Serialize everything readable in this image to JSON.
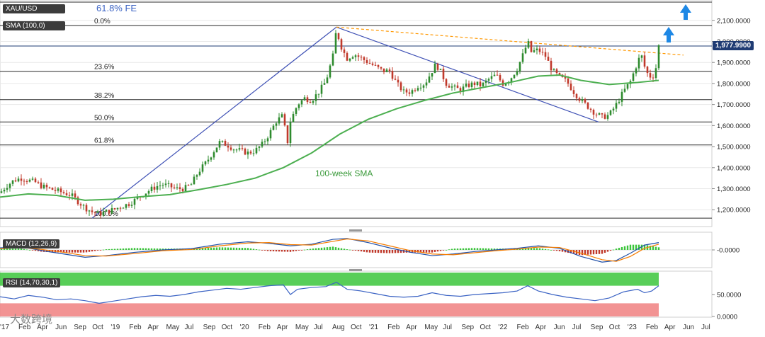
{
  "chart_data": [
    {
      "type": "candlestick",
      "symbol": "XAU/USD",
      "indicator": "SMA (100,0)",
      "sma_label": "100-week SMA",
      "last_price": "1,977.9900",
      "projection_label": "61.8% FE",
      "fib_levels": [
        {
          "label": "0.0%",
          "price": 2075
        },
        {
          "label": "23.6%",
          "price": 1858
        },
        {
          "label": "38.2%",
          "price": 1723
        },
        {
          "label": "50.0%",
          "price": 1617
        },
        {
          "label": "61.8%",
          "price": 1508
        },
        {
          "label": "100.0%",
          "price": 1160
        }
      ],
      "y_ticks": [
        "2,100.0000",
        "2,000.0000",
        "1,900.0000",
        "1,800.0000",
        "1,700.0000",
        "1,600.0000",
        "1,500.0000",
        "1,400.0000",
        "1,300.0000",
        "1,200.0000"
      ],
      "ylim": [
        1120,
        2180
      ],
      "x_ticks": [
        "'17",
        "Feb",
        "Apr",
        "Jun",
        "Sep",
        "Oct",
        "'19",
        "Feb",
        "Apr",
        "May",
        "Jul",
        "Sep",
        "Oct",
        "'20",
        "Feb",
        "Apr",
        "May",
        "Jul",
        "Aug",
        "Oct",
        "'21",
        "Feb",
        "Apr",
        "May",
        "Jul",
        "Sep",
        "Oct",
        "'22",
        "Feb",
        "Apr",
        "Jun",
        "Jul",
        "Sep",
        "Oct",
        "'23",
        "Feb",
        "Apr",
        "Jun",
        "Jul"
      ],
      "price_path": [
        [
          0,
          1280
        ],
        [
          8,
          1310
        ],
        [
          20,
          1340
        ],
        [
          30,
          1350
        ],
        [
          40,
          1340
        ],
        [
          50,
          1330
        ],
        [
          60,
          1310
        ],
        [
          70,
          1300
        ],
        [
          80,
          1290
        ],
        [
          90,
          1280
        ],
        [
          100,
          1270
        ],
        [
          110,
          1240
        ],
        [
          120,
          1210
        ],
        [
          130,
          1190
        ],
        [
          140,
          1180
        ],
        [
          150,
          1190
        ],
        [
          160,
          1200
        ],
        [
          170,
          1215
        ],
        [
          180,
          1225
        ],
        [
          190,
          1245
        ],
        [
          200,
          1270
        ],
        [
          210,
          1290
        ],
        [
          220,
          1310
        ],
        [
          230,
          1320
        ],
        [
          240,
          1310
        ],
        [
          250,
          1300
        ],
        [
          260,
          1300
        ],
        [
          270,
          1320
        ],
        [
          280,
          1380
        ],
        [
          290,
          1420
        ],
        [
          300,
          1470
        ],
        [
          310,
          1520
        ],
        [
          320,
          1510
        ],
        [
          330,
          1490
        ],
        [
          340,
          1480
        ],
        [
          350,
          1470
        ],
        [
          360,
          1480
        ],
        [
          370,
          1510
        ],
        [
          380,
          1560
        ],
        [
          390,
          1620
        ],
        [
          400,
          1650
        ],
        [
          405,
          1500
        ],
        [
          410,
          1620
        ],
        [
          420,
          1700
        ],
        [
          430,
          1730
        ],
        [
          440,
          1720
        ],
        [
          450,
          1760
        ],
        [
          460,
          1810
        ],
        [
          470,
          1930
        ],
        [
          475,
          2060
        ],
        [
          480,
          1990
        ],
        [
          485,
          1950
        ],
        [
          490,
          1920
        ],
        [
          500,
          1940
        ],
        [
          510,
          1920
        ],
        [
          520,
          1900
        ],
        [
          530,
          1880
        ],
        [
          540,
          1860
        ],
        [
          550,
          1860
        ],
        [
          560,
          1800
        ],
        [
          570,
          1760
        ],
        [
          580,
          1760
        ],
        [
          590,
          1790
        ],
        [
          600,
          1800
        ],
        [
          610,
          1860
        ],
        [
          615,
          1890
        ],
        [
          620,
          1870
        ],
        [
          630,
          1800
        ],
        [
          640,
          1780
        ],
        [
          650,
          1770
        ],
        [
          660,
          1790
        ],
        [
          670,
          1800
        ],
        [
          680,
          1790
        ],
        [
          690,
          1820
        ],
        [
          700,
          1840
        ],
        [
          710,
          1800
        ],
        [
          720,
          1820
        ],
        [
          730,
          1870
        ],
        [
          740,
          1950
        ],
        [
          745,
          2000
        ],
        [
          750,
          1950
        ],
        [
          760,
          1960
        ],
        [
          770,
          1930
        ],
        [
          780,
          1860
        ],
        [
          790,
          1830
        ],
        [
          800,
          1810
        ],
        [
          810,
          1760
        ],
        [
          820,
          1720
        ],
        [
          830,
          1690
        ],
        [
          840,
          1660
        ],
        [
          850,
          1640
        ],
        [
          860,
          1650
        ],
        [
          870,
          1700
        ],
        [
          880,
          1760
        ],
        [
          890,
          1810
        ],
        [
          900,
          1900
        ],
        [
          905,
          1940
        ],
        [
          910,
          1880
        ],
        [
          915,
          1840
        ],
        [
          920,
          1830
        ],
        [
          925,
          1850
        ],
        [
          930,
          1978
        ]
      ],
      "sma_path": [
        [
          0,
          1260
        ],
        [
          40,
          1275
        ],
        [
          80,
          1268
        ],
        [
          120,
          1245
        ],
        [
          160,
          1250
        ],
        [
          200,
          1262
        ],
        [
          240,
          1272
        ],
        [
          280,
          1295
        ],
        [
          320,
          1320
        ],
        [
          360,
          1350
        ],
        [
          400,
          1400
        ],
        [
          440,
          1470
        ],
        [
          480,
          1560
        ],
        [
          520,
          1630
        ],
        [
          560,
          1680
        ],
        [
          600,
          1720
        ],
        [
          640,
          1755
        ],
        [
          680,
          1780
        ],
        [
          720,
          1805
        ],
        [
          760,
          1835
        ],
        [
          790,
          1840
        ],
        [
          820,
          1815
        ],
        [
          860,
          1795
        ],
        [
          900,
          1805
        ],
        [
          930,
          1815
        ]
      ],
      "resistance_line": [
        [
          475,
          2068
        ],
        [
          965,
          1935
        ]
      ],
      "channel_line": [
        [
          475,
          2068
        ],
        [
          845,
          1617
        ]
      ],
      "rise_line": [
        [
          130,
          1160
        ],
        [
          475,
          2068
        ]
      ]
    },
    {
      "type": "line",
      "title": "MACD (12,26,9)",
      "y_tick": "-0.0000",
      "ylim": [
        -40,
        40
      ],
      "macd": [
        [
          0,
          5
        ],
        [
          30,
          8
        ],
        [
          60,
          -2
        ],
        [
          90,
          -10
        ],
        [
          120,
          -18
        ],
        [
          150,
          -14
        ],
        [
          190,
          -6
        ],
        [
          230,
          0
        ],
        [
          270,
          3
        ],
        [
          310,
          14
        ],
        [
          350,
          20
        ],
        [
          380,
          16
        ],
        [
          410,
          10
        ],
        [
          440,
          14
        ],
        [
          470,
          26
        ],
        [
          490,
          28
        ],
        [
          520,
          18
        ],
        [
          550,
          5
        ],
        [
          580,
          -6
        ],
        [
          610,
          -14
        ],
        [
          640,
          -10
        ],
        [
          670,
          -4
        ],
        [
          700,
          0
        ],
        [
          730,
          4
        ],
        [
          760,
          10
        ],
        [
          790,
          4
        ],
        [
          820,
          -16
        ],
        [
          850,
          -30
        ],
        [
          870,
          -26
        ],
        [
          890,
          -8
        ],
        [
          910,
          12
        ],
        [
          930,
          18
        ]
      ],
      "signal": [
        [
          0,
          3
        ],
        [
          30,
          6
        ],
        [
          60,
          1
        ],
        [
          90,
          -6
        ],
        [
          120,
          -14
        ],
        [
          150,
          -15
        ],
        [
          190,
          -9
        ],
        [
          230,
          -2
        ],
        [
          270,
          1
        ],
        [
          310,
          10
        ],
        [
          350,
          17
        ],
        [
          380,
          18
        ],
        [
          410,
          13
        ],
        [
          440,
          12
        ],
        [
          470,
          21
        ],
        [
          490,
          27
        ],
        [
          520,
          22
        ],
        [
          550,
          10
        ],
        [
          580,
          -2
        ],
        [
          610,
          -10
        ],
        [
          640,
          -12
        ],
        [
          670,
          -7
        ],
        [
          700,
          -2
        ],
        [
          730,
          2
        ],
        [
          760,
          7
        ],
        [
          790,
          6
        ],
        [
          820,
          -8
        ],
        [
          850,
          -24
        ],
        [
          870,
          -28
        ],
        [
          890,
          -16
        ],
        [
          910,
          4
        ],
        [
          930,
          14
        ]
      ]
    },
    {
      "type": "line",
      "title": "RSI (14,70,30,1)",
      "y_ticks": [
        "50.0000",
        "0.0000"
      ],
      "ylim": [
        0,
        100
      ],
      "overbought": 70,
      "oversold": 30,
      "rsi": [
        [
          0,
          45
        ],
        [
          20,
          40
        ],
        [
          40,
          48
        ],
        [
          60,
          44
        ],
        [
          80,
          38
        ],
        [
          100,
          40
        ],
        [
          120,
          36
        ],
        [
          140,
          30
        ],
        [
          160,
          35
        ],
        [
          180,
          40
        ],
        [
          200,
          45
        ],
        [
          220,
          48
        ],
        [
          240,
          46
        ],
        [
          260,
          50
        ],
        [
          280,
          56
        ],
        [
          300,
          60
        ],
        [
          320,
          64
        ],
        [
          340,
          62
        ],
        [
          360,
          66
        ],
        [
          380,
          70
        ],
        [
          400,
          72
        ],
        [
          410,
          50
        ],
        [
          420,
          62
        ],
        [
          440,
          66
        ],
        [
          460,
          68
        ],
        [
          475,
          78
        ],
        [
          490,
          62
        ],
        [
          510,
          58
        ],
        [
          530,
          52
        ],
        [
          550,
          46
        ],
        [
          570,
          44
        ],
        [
          590,
          46
        ],
        [
          610,
          54
        ],
        [
          630,
          48
        ],
        [
          650,
          46
        ],
        [
          670,
          50
        ],
        [
          690,
          52
        ],
        [
          710,
          54
        ],
        [
          730,
          58
        ],
        [
          745,
          70
        ],
        [
          760,
          58
        ],
        [
          780,
          50
        ],
        [
          800,
          44
        ],
        [
          820,
          40
        ],
        [
          840,
          36
        ],
        [
          860,
          42
        ],
        [
          880,
          56
        ],
        [
          900,
          62
        ],
        [
          910,
          54
        ],
        [
          920,
          58
        ],
        [
          930,
          70
        ]
      ]
    }
  ],
  "watermark": "大数跨境",
  "colors": {
    "up": "#2e8b2e",
    "down": "#c0392b",
    "sma": "#4caf50",
    "trend": "#3f51b5",
    "resistance": "#ff9800",
    "arrow": "#1e88e5",
    "macd": "#1f4fa8",
    "signal": "#f57c00",
    "rsi": "#3b63c4",
    "ob": "#3bc53b",
    "os": "#f08080"
  }
}
